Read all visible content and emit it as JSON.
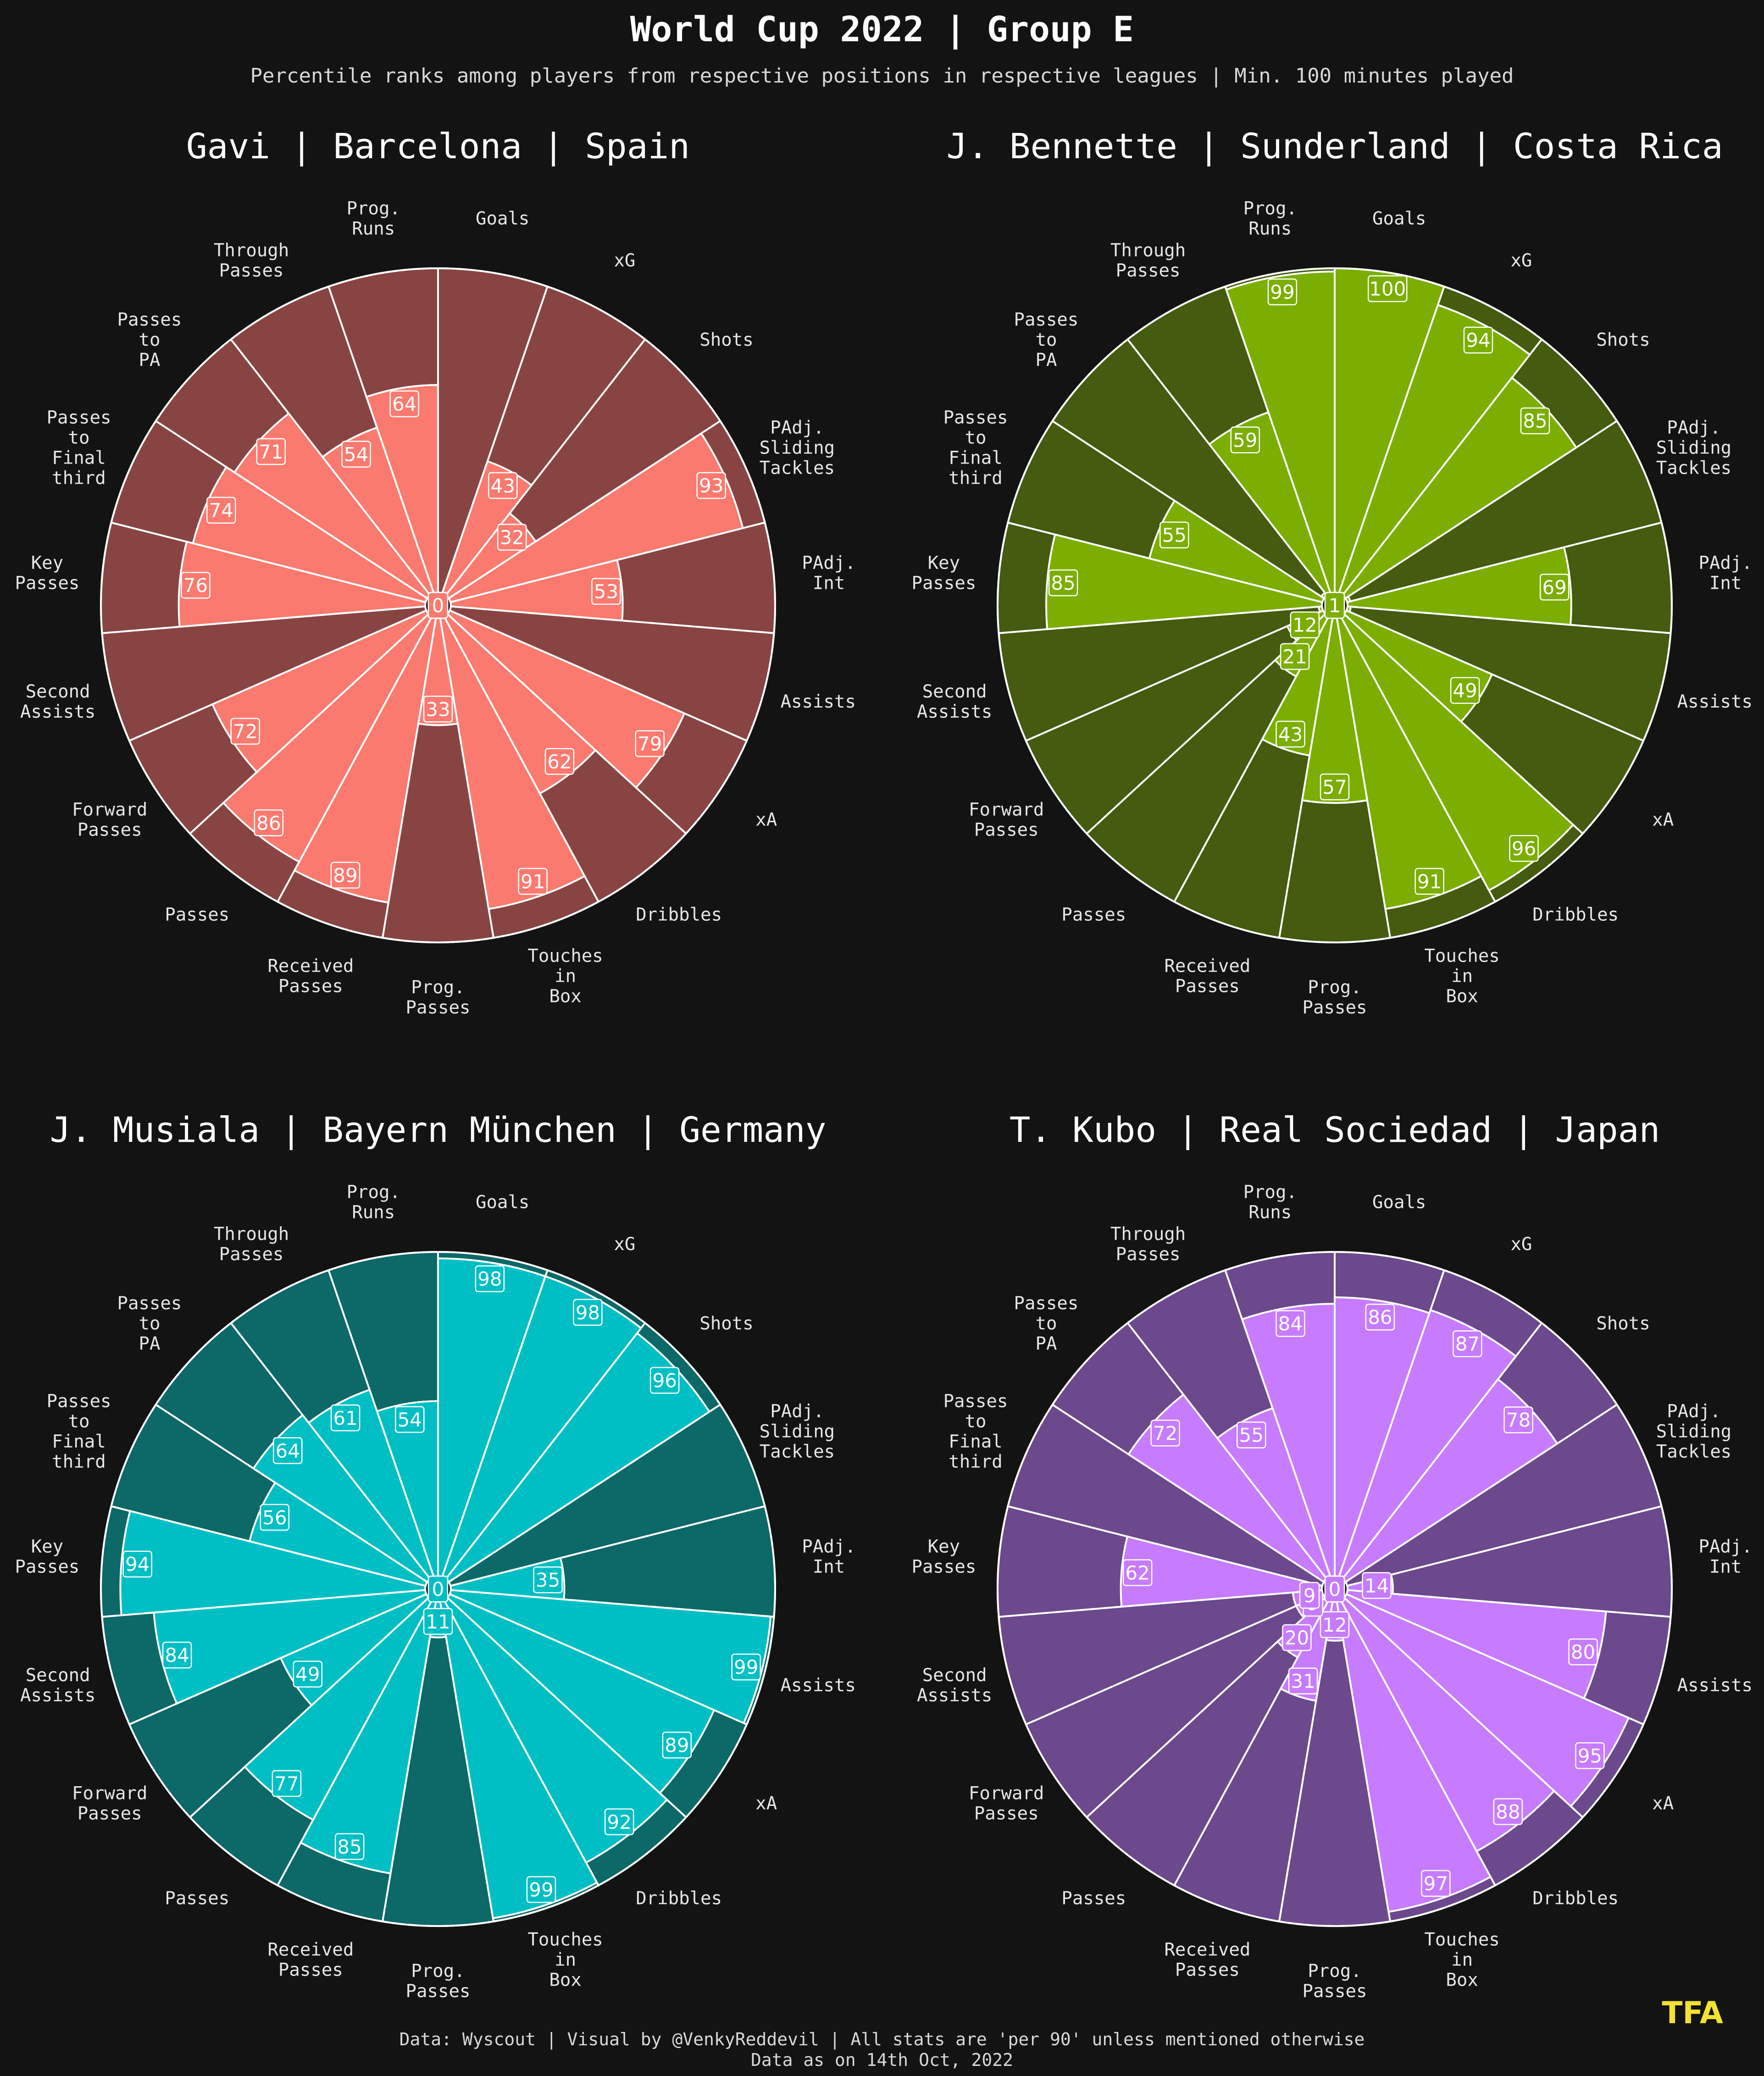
{
  "title": "World Cup 2022 | Group E",
  "subtitle": "Percentile ranks among players from respective positions in respective leagues | Min. 100 minutes played",
  "footer_line1": "Data: Wyscout | Visual by @VenkyReddevil | All stats are 'per 90' unless mentioned otherwise",
  "footer_line2": "Data as on 14th Oct, 2022",
  "logo": "TFA",
  "categories": [
    [
      "Goals"
    ],
    [
      "xG"
    ],
    [
      "Shots"
    ],
    [
      "PAdj.",
      "Sliding",
      "Tackles"
    ],
    [
      "PAdj.",
      "Int"
    ],
    [
      "Assists"
    ],
    [
      "xA"
    ],
    [
      "Dribbles"
    ],
    [
      "Touches",
      "in",
      "Box"
    ],
    [
      "Prog.",
      "Passes"
    ],
    [
      "Received",
      "Passes"
    ],
    [
      "Passes"
    ],
    [
      "Forward",
      "Passes"
    ],
    [
      "Second",
      "Assists"
    ],
    [
      "Key",
      "Passes"
    ],
    [
      "Passes",
      "to",
      "Final",
      "third"
    ],
    [
      "Passes",
      "to",
      "PA"
    ],
    [
      "Through",
      "Passes"
    ],
    [
      "Prog.",
      "Runs"
    ]
  ],
  "chart_data": [
    {
      "type": "polar_bar",
      "title": "Gavi | Barcelona | Spain",
      "color_fill": "#fa7a6f",
      "color_bg": "#884443",
      "rlim": [
        0,
        100
      ],
      "values": [
        0,
        43,
        32,
        93,
        53,
        0,
        79,
        62,
        91,
        33,
        89,
        86,
        72,
        0,
        76,
        74,
        71,
        54,
        64
      ]
    },
    {
      "type": "polar_bar",
      "title": "J. Bennette | Sunderland | Costa Rica",
      "color_fill": "#7bae00",
      "color_bg": "#445b10",
      "rlim": [
        0,
        100
      ],
      "values": [
        100,
        94,
        85,
        1,
        69,
        1,
        49,
        96,
        91,
        57,
        43,
        21,
        12,
        1,
        85,
        55,
        1,
        59,
        99
      ]
    },
    {
      "type": "polar_bar",
      "title": "J. Musiala | Bayern München | Germany",
      "color_fill": "#00bfc4",
      "color_bg": "#0d6868",
      "rlim": [
        0,
        100
      ],
      "values": [
        98,
        98,
        96,
        0,
        35,
        99,
        89,
        92,
        99,
        11,
        85,
        77,
        49,
        84,
        94,
        56,
        64,
        61,
        54
      ]
    },
    {
      "type": "polar_bar",
      "title": "T. Kubo | Real Sociedad | Japan",
      "color_fill": "#c77cff",
      "color_bg": "#6b498c",
      "rlim": [
        0,
        100
      ],
      "values": [
        86,
        87,
        78,
        0,
        14,
        80,
        95,
        88,
        97,
        12,
        31,
        20,
        9,
        9,
        62,
        0,
        72,
        55,
        84
      ]
    }
  ]
}
